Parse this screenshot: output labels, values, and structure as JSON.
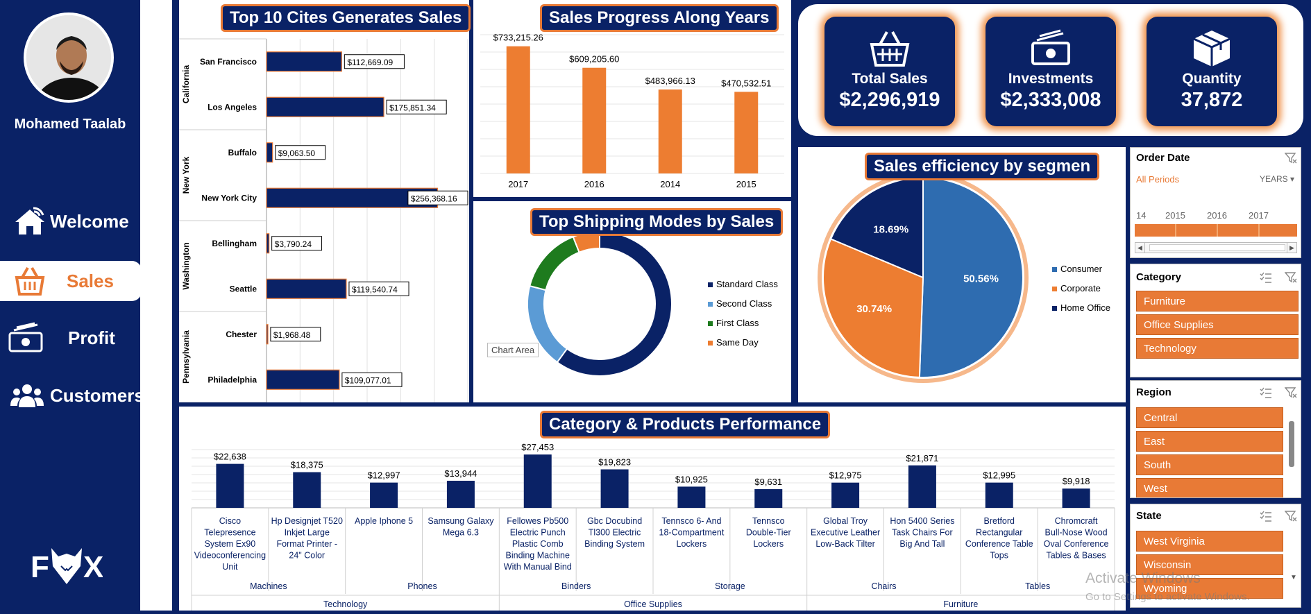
{
  "user": {
    "name": "Mohamed Taalab"
  },
  "nav": [
    {
      "label": "Welcome",
      "icon": "home-wifi-icon",
      "active": false
    },
    {
      "label": "Sales",
      "icon": "basket-icon",
      "active": true
    },
    {
      "label": "Profit",
      "icon": "cash-icon",
      "active": false
    },
    {
      "label": "Customers",
      "icon": "users-icon",
      "active": false
    }
  ],
  "logo": {
    "text": "FOX"
  },
  "cities": {
    "title": "Top 10 Cites Generates Sales",
    "groups": [
      {
        "state": "California",
        "items": [
          {
            "city": "San Francisco",
            "label": "$112,669.09",
            "value": 112669.09
          },
          {
            "city": "Los Angeles",
            "label": "$175,851.34",
            "value": 175851.34
          }
        ]
      },
      {
        "state": "New York",
        "items": [
          {
            "city": "Buffalo",
            "label": "$9,063.50",
            "value": 9063.5
          },
          {
            "city": "New York City",
            "label": "$256,368.16",
            "value": 256368.16
          }
        ]
      },
      {
        "state": "Washington",
        "items": [
          {
            "city": "Bellingham",
            "label": "$3,790.24",
            "value": 3790.24
          },
          {
            "city": "Seattle",
            "label": "$119,540.74",
            "value": 119540.74
          }
        ]
      },
      {
        "state": "Pennsylvania",
        "items": [
          {
            "city": "Chester",
            "label": "$1,968.48",
            "value": 1968.48
          },
          {
            "city": "Philadelphia",
            "label": "$109,077.01",
            "value": 109077.01
          }
        ]
      }
    ]
  },
  "years": {
    "title": "Sales Progress Along Years",
    "categories": [
      "2017",
      "2016",
      "2014",
      "2015"
    ],
    "values": [
      733215.26,
      609205.6,
      483966.13,
      470532.51
    ],
    "labels": [
      "$733,215.26",
      "$609,205.60",
      "$483,966.13",
      "$470,532.51"
    ],
    "color": "#ed7d31"
  },
  "shipping": {
    "title": "Top Shipping Modes by Sales",
    "legend": [
      {
        "name": "Standard Class",
        "color": "#0a2266",
        "value": 0.6
      },
      {
        "name": "Second Class",
        "color": "#5b9bd5",
        "value": 0.19
      },
      {
        "name": "First Class",
        "color": "#1e7b1e",
        "value": 0.15
      },
      {
        "name": "Same Day",
        "color": "#ed7d31",
        "value": 0.06
      }
    ],
    "tooltip": "Chart Area"
  },
  "segment": {
    "title": "Sales efficiency by segmen",
    "slices": [
      {
        "name": "Consumer",
        "label": "50.56%",
        "value": 50.56,
        "color": "#2e6cb0"
      },
      {
        "name": "Corporate",
        "label": "30.74%",
        "value": 30.74,
        "color": "#ed7d31"
      },
      {
        "name": "Home Office",
        "label": "18.69%",
        "value": 18.69,
        "color": "#0a2266"
      }
    ]
  },
  "kpis": [
    {
      "title": "Total Sales",
      "value": "$2,296,919",
      "icon": "basket-icon"
    },
    {
      "title": "Investments",
      "value": "$2,333,008",
      "icon": "cash-icon"
    },
    {
      "title": "Quantity",
      "value": "37,872",
      "icon": "box-icon"
    }
  ],
  "slicers": {
    "orderdate": {
      "title": "Order Date",
      "period": "All Periods",
      "unit": "YEARS",
      "ticks": [
        "14",
        "2015",
        "2016",
        "2017"
      ]
    },
    "category": {
      "title": "Category",
      "items": [
        "Furniture",
        "Office Supplies",
        "Technology"
      ]
    },
    "region": {
      "title": "Region",
      "items": [
        "Central",
        "East",
        "South",
        "West"
      ]
    },
    "state": {
      "title": "State",
      "items": [
        "West Virginia",
        "Wisconsin",
        "Wyoming"
      ]
    }
  },
  "products": {
    "title": "Category & Products Performance",
    "items": [
      {
        "name": "Cisco Telepresence System Ex90 Videoconferencing Unit",
        "label": "$22,638",
        "value": 22638,
        "sub": "Machines",
        "cat": "Technology"
      },
      {
        "name": "Hp Designjet T520 Inkjet Large Format Printer - 24\" Color",
        "label": "$18,375",
        "value": 18375,
        "sub": "Machines",
        "cat": "Technology"
      },
      {
        "name": "Apple Iphone 5",
        "label": "$12,997",
        "value": 12997,
        "sub": "Phones",
        "cat": "Technology"
      },
      {
        "name": "Samsung Galaxy Mega 6.3",
        "label": "$13,944",
        "value": 13944,
        "sub": "Phones",
        "cat": "Technology"
      },
      {
        "name": "Fellowes Pb500 Electric Punch Plastic Comb Binding Machine With Manual Bind",
        "label": "$27,453",
        "value": 27453,
        "sub": "Binders",
        "cat": "Office Supplies"
      },
      {
        "name": "Gbc Docubind Tl300 Electric Binding System",
        "label": "$19,823",
        "value": 19823,
        "sub": "Binders",
        "cat": "Office Supplies"
      },
      {
        "name": "Tennsco 6- And 18-Compartment Lockers",
        "label": "$10,925",
        "value": 10925,
        "sub": "Storage",
        "cat": "Office Supplies"
      },
      {
        "name": "Tennsco Double-Tier Lockers",
        "label": "$9,631",
        "value": 9631,
        "sub": "Storage",
        "cat": "Office Supplies"
      },
      {
        "name": "Global Troy Executive Leather Low-Back Tilter",
        "label": "$12,975",
        "value": 12975,
        "sub": "Chairs",
        "cat": "Furniture"
      },
      {
        "name": "Hon 5400 Series Task Chairs For Big And Tall",
        "label": "$21,871",
        "value": 21871,
        "sub": "Chairs",
        "cat": "Furniture"
      },
      {
        "name": "Bretford Rectangular Conference Table Tops",
        "label": "$12,995",
        "value": 12995,
        "sub": "Tables",
        "cat": "Furniture"
      },
      {
        "name": "Chromcraft Bull-Nose Wood Oval Conference Tables & Bases",
        "label": "$9,918",
        "value": 9918,
        "sub": "Tables",
        "cat": "Furniture"
      }
    ],
    "subcategories": [
      "Machines",
      "Phones",
      "Binders",
      "Storage",
      "Chairs",
      "Tables"
    ],
    "categories": [
      "Technology",
      "Office Supplies",
      "Furniture"
    ]
  },
  "watermark": {
    "line1": "Activate Windows",
    "line2": "Go to Settings to activate Windows."
  }
}
